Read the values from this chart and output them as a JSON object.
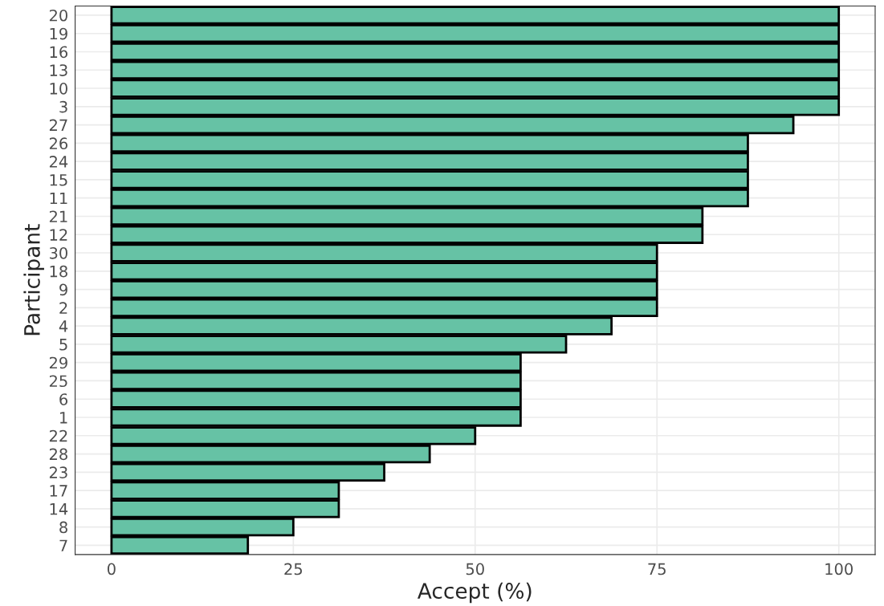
{
  "chart_data": {
    "type": "bar",
    "orientation": "horizontal",
    "xlabel": "Accept (%)",
    "ylabel": "Participant",
    "categories": [
      "20",
      "19",
      "16",
      "13",
      "10",
      "3",
      "27",
      "26",
      "24",
      "15",
      "11",
      "21",
      "12",
      "30",
      "18",
      "9",
      "2",
      "4",
      "5",
      "29",
      "25",
      "6",
      "1",
      "22",
      "28",
      "23",
      "17",
      "14",
      "8",
      "7"
    ],
    "values": [
      100,
      100,
      100,
      100,
      100,
      100,
      93.75,
      87.5,
      87.5,
      87.5,
      87.5,
      81.25,
      81.25,
      75,
      75,
      75,
      75,
      68.75,
      62.5,
      56.25,
      56.25,
      56.25,
      56.25,
      50,
      43.75,
      37.5,
      31.25,
      31.25,
      25,
      18.75
    ],
    "color": "#66c2a5",
    "xlim": [
      -5,
      105
    ],
    "xticks": [
      0,
      25,
      50,
      75,
      100
    ],
    "grid": true
  }
}
